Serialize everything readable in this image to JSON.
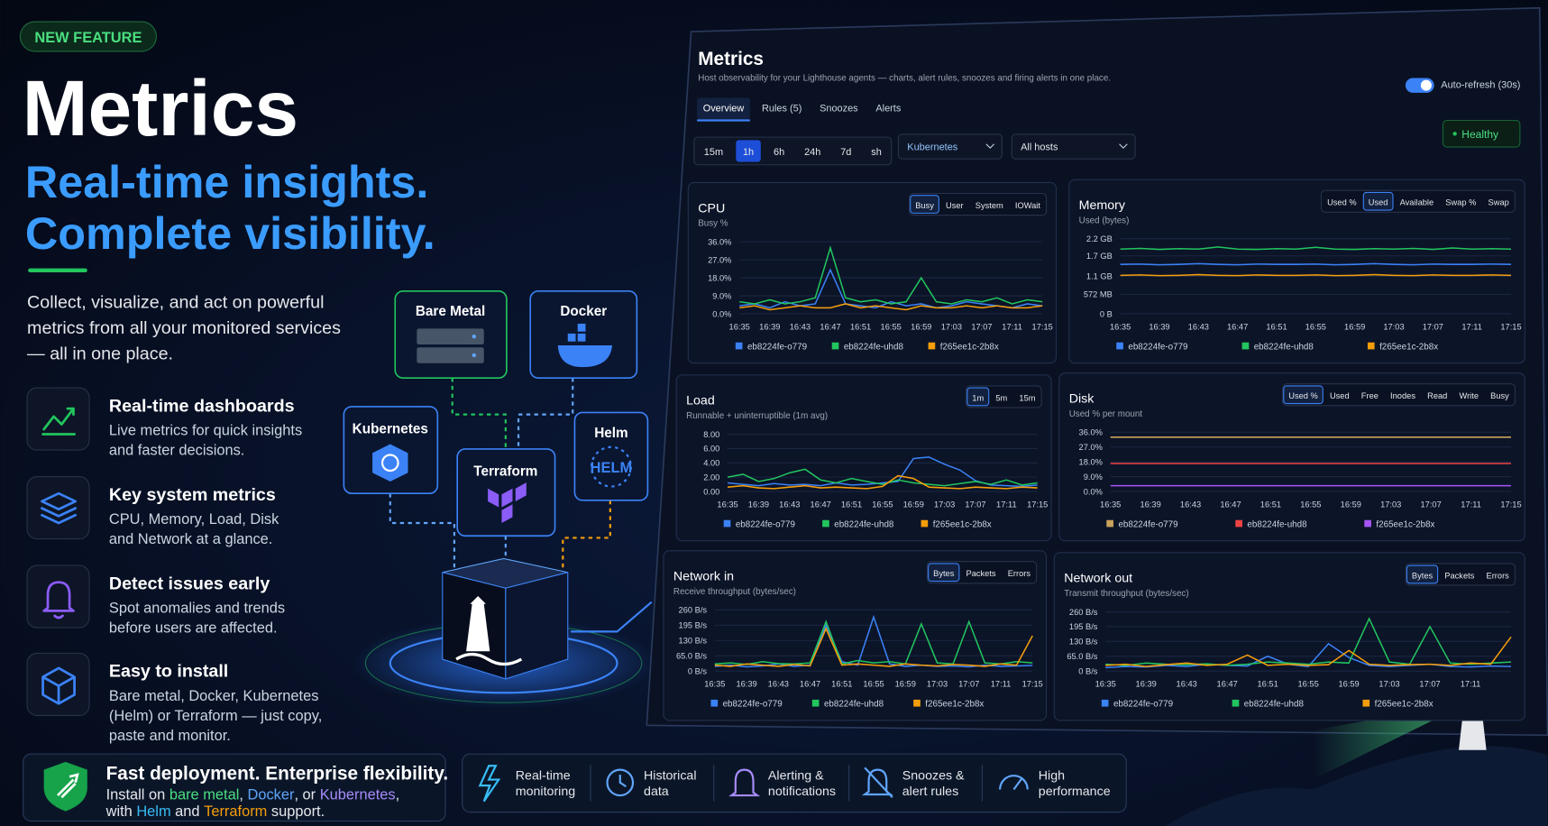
{
  "hero": {
    "badge": "NEW FEATURE",
    "title": "Metrics",
    "tagline": [
      "Real-time insights.",
      "Complete visibility."
    ],
    "description": [
      "Collect, visualize, and act on powerful",
      "metrics from all your monitored services",
      "— all in one place."
    ],
    "features": [
      {
        "title": "Real-time dashboards",
        "text": [
          "Live metrics for quick insights",
          "and faster decisions."
        ]
      },
      {
        "title": "Key system metrics",
        "text": [
          "CPU, Memory, Load, Disk",
          "and Network at a glance."
        ]
      },
      {
        "title": "Detect issues early",
        "text": [
          "Spot anomalies and trends",
          "before users are affected."
        ]
      },
      {
        "title": "Easy to install",
        "text": [
          "Bare metal, Docker, Kubernetes",
          "(Helm) or Terraform — just copy,",
          "paste and monitor."
        ]
      }
    ],
    "deploy": {
      "title": "Fast deployment. Enterprise flexibility.",
      "line1": [
        "Install on ",
        "bare metal",
        ", ",
        "Docker",
        ", or ",
        "Kubernetes",
        ","
      ],
      "line2": [
        "with ",
        "Helm",
        " and ",
        "Terraform",
        " support."
      ]
    }
  },
  "nodes": [
    {
      "label": "Bare Metal"
    },
    {
      "label": "Docker"
    },
    {
      "label": "Kubernetes"
    },
    {
      "label": "Terraform"
    },
    {
      "label": "Helm",
      "icon_text": "HELM"
    }
  ],
  "bottom_bar": [
    [
      "Real-time",
      "monitoring"
    ],
    [
      "Historical",
      "data"
    ],
    [
      "Alerting &",
      "notifications"
    ],
    [
      "Snoozes &",
      "alert rules"
    ],
    [
      "High",
      "performance"
    ]
  ],
  "dashboard": {
    "title": "Metrics",
    "subtitle": "Host observability for your Lighthouse agents — charts, alert rules, snoozes and firing alerts in one place.",
    "auto_refresh": {
      "label": "Auto-refresh (30s)",
      "on": true
    },
    "tabs": [
      "Overview",
      "Rules (5)",
      "Snoozes",
      "Alerts"
    ],
    "selected_tab": 0,
    "ranges": [
      "15m",
      "1h",
      "6h",
      "24h",
      "7d",
      "sh"
    ],
    "selected_range": 1,
    "filters": [
      "Kubernetes",
      "All hosts"
    ],
    "status": "Healthy",
    "panels": [
      {
        "type": "line",
        "title": "CPU",
        "subtitle": "Busy %",
        "buttons": [
          "Busy",
          "User",
          "System",
          "IOWait"
        ],
        "selected_button": 0,
        "categories": [
          "16:35",
          null,
          "16:39",
          null,
          "16:43",
          null,
          "16:47",
          null,
          "16:51",
          null,
          "16:55",
          null,
          "16:59",
          null,
          "17:03",
          null,
          "17:07",
          null,
          "17:11",
          null,
          "17:15"
        ],
        "ylim": [
          0,
          36
        ],
        "yticks": [
          {
            "value": 0,
            "label": "0.0%"
          },
          {
            "value": 9,
            "label": "9.0%"
          },
          {
            "value": 18,
            "label": "18.0%"
          },
          {
            "value": 27,
            "label": "27.0%"
          },
          {
            "value": 36,
            "label": "36.0%"
          }
        ],
        "series": [
          {
            "name": "eb8224fe-o779",
            "color": "#3b82f6",
            "values": [
              4,
              5,
              3,
              6,
              4,
              5,
              22,
              5,
              4,
              3,
              6,
              4,
              5,
              3,
              4,
              6,
              5,
              4,
              3,
              5,
              4
            ]
          },
          {
            "name": "eb8224fe-uhd8",
            "color": "#22c55e",
            "values": [
              6,
              5,
              7,
              5,
              6,
              8,
              33,
              8,
              6,
              7,
              5,
              6,
              18,
              6,
              5,
              7,
              6,
              8,
              5,
              7,
              6
            ]
          },
          {
            "name": "f265ee1c-2b8x",
            "color": "#f59e0b",
            "values": [
              3,
              4,
              2,
              3,
              4,
              3,
              3,
              5,
              3,
              4,
              3,
              2,
              4,
              3,
              3,
              4,
              3,
              4,
              3,
              3,
              4
            ]
          }
        ]
      },
      {
        "type": "line",
        "title": "Memory",
        "subtitle": "Used (bytes)",
        "buttons": [
          "Used %",
          "Used",
          "Available",
          "Swap %",
          "Swap"
        ],
        "selected_button": 1,
        "categories": [
          "16:35",
          null,
          "16:39",
          null,
          "16:43",
          null,
          "16:47",
          null,
          "16:51",
          null,
          "16:55",
          null,
          "16:59",
          null,
          "17:03",
          null,
          "17:07",
          null,
          "17:11",
          null,
          "17:15"
        ],
        "ylim": [
          0,
          2200000000
        ],
        "yticks": [
          {
            "value": 0,
            "label": "0 B"
          },
          {
            "value": 572000000,
            "label": "572 MB"
          },
          {
            "value": 1100000000,
            "label": "1.1 GB"
          },
          {
            "value": 1700000000,
            "label": "1.7 GB"
          },
          {
            "value": 2200000000,
            "label": "2.2 GB"
          }
        ],
        "series": [
          {
            "name": "eb8224fe-o779",
            "color": "#3b82f6",
            "values": [
              1450000000,
              1460000000,
              1440000000,
              1450000000,
              1470000000,
              1450000000,
              1440000000,
              1460000000,
              1450000000,
              1450000000,
              1460000000,
              1440000000,
              1450000000,
              1470000000,
              1450000000,
              1440000000,
              1460000000,
              1450000000,
              1450000000,
              1460000000,
              1450000000
            ]
          },
          {
            "name": "eb8224fe-uhd8",
            "color": "#22c55e",
            "values": [
              1900000000,
              1920000000,
              1890000000,
              1910000000,
              1900000000,
              1960000000,
              1900000000,
              1890000000,
              1910000000,
              1900000000,
              1950000000,
              1900000000,
              1890000000,
              1910000000,
              1900000000,
              1920000000,
              1890000000,
              1930000000,
              1900000000,
              1910000000,
              1900000000
            ]
          },
          {
            "name": "f265ee1c-2b8x",
            "color": "#f59e0b",
            "values": [
              1130000000,
              1140000000,
              1120000000,
              1130000000,
              1150000000,
              1130000000,
              1120000000,
              1140000000,
              1130000000,
              1130000000,
              1140000000,
              1120000000,
              1130000000,
              1150000000,
              1130000000,
              1120000000,
              1140000000,
              1130000000,
              1130000000,
              1140000000,
              1130000000
            ]
          }
        ]
      },
      {
        "type": "line",
        "title": "Load",
        "subtitle": "Runnable + uninterruptible (1m avg)",
        "buttons": [
          "1m",
          "5m",
          "15m"
        ],
        "selected_button": 0,
        "categories": [
          "16:35",
          null,
          "16:39",
          null,
          "16:43",
          null,
          "16:47",
          null,
          "16:51",
          null,
          "16:55",
          null,
          "16:59",
          null,
          "17:03",
          null,
          "17:07",
          null,
          "17:11",
          null,
          "17:15"
        ],
        "ylim": [
          0,
          8
        ],
        "yticks": [
          {
            "value": 0,
            "label": "0.00"
          },
          {
            "value": 2,
            "label": "2.00"
          },
          {
            "value": 4,
            "label": "4.00"
          },
          {
            "value": 6,
            "label": "6.00"
          },
          {
            "value": 8,
            "label": "8.00"
          }
        ],
        "series": [
          {
            "name": "eb8224fe-o779",
            "color": "#3b82f6",
            "values": [
              1.2,
              1,
              0.8,
              1.1,
              0.9,
              1,
              0.8,
              1.2,
              0.9,
              1,
              1.2,
              1.4,
              4.6,
              4.8,
              3.8,
              3,
              1.5,
              0.9,
              0.8,
              0.7,
              0.9
            ]
          },
          {
            "name": "eb8224fe-uhd8",
            "color": "#22c55e",
            "values": [
              2,
              2.4,
              1.4,
              1.8,
              2.6,
              3.1,
              1.6,
              1.2,
              1.8,
              1.4,
              1,
              1.6,
              1.2,
              1,
              0.8,
              1.1,
              1.4,
              1,
              1.6,
              0.9,
              1.2
            ]
          },
          {
            "name": "f265ee1c-2b8x",
            "color": "#f59e0b",
            "values": [
              0.6,
              0.8,
              0.5,
              0.4,
              0.6,
              0.8,
              0.5,
              0.6,
              0.5,
              0.4,
              0.7,
              2.2,
              1.8,
              0.6,
              0.5,
              0.4,
              0.6,
              0.5,
              0.4,
              0.6,
              0.5
            ]
          }
        ]
      },
      {
        "type": "line",
        "title": "Disk",
        "subtitle": "Used % per mount",
        "buttons": [
          "Used %",
          "Used",
          "Free",
          "Inodes",
          "Read",
          "Write",
          "Busy"
        ],
        "selected_button": 0,
        "categories": [
          "16:35",
          null,
          "16:39",
          null,
          "16:43",
          null,
          "16:47",
          null,
          "16:51",
          null,
          "16:55",
          null,
          "16:59",
          null,
          "17:03",
          null,
          "17:07",
          null,
          "17:11",
          null,
          "17:15"
        ],
        "ylim": [
          0,
          36
        ],
        "yticks": [
          {
            "value": 0,
            "label": "0.0%"
          },
          {
            "value": 9,
            "label": "9.0%"
          },
          {
            "value": 18,
            "label": "18.0%"
          },
          {
            "value": 27,
            "label": "27.0%"
          },
          {
            "value": 36,
            "label": "36.0%"
          }
        ],
        "series": [
          {
            "name": "eb8224fe-o779",
            "color": "#c9a35a",
            "values": [
              33,
              33,
              33,
              33,
              33,
              33,
              33,
              33,
              33,
              33,
              33,
              33,
              33,
              33,
              33,
              33,
              33,
              33,
              33,
              33,
              33
            ]
          },
          {
            "name": "eb8224fe-uhd8",
            "color": "#ef4444",
            "values": [
              17,
              17,
              17,
              17,
              17,
              17,
              17,
              17,
              17,
              17,
              17,
              17,
              17,
              17,
              17,
              17,
              17,
              17,
              17,
              17,
              17
            ]
          },
          {
            "name": "f265ee1c-2b8x",
            "color": "#a855f7",
            "values": [
              3.5,
              3.5,
              3.5,
              3.5,
              3.5,
              3.5,
              3.5,
              3.5,
              3.5,
              3.5,
              3.5,
              3.5,
              3.5,
              3.5,
              3.5,
              3.5,
              3.5,
              3.5,
              3.5,
              3.5,
              3.5
            ]
          }
        ]
      },
      {
        "type": "line",
        "title": "Network in",
        "subtitle": "Receive throughput (bytes/sec)",
        "buttons": [
          "Bytes",
          "Packets",
          "Errors"
        ],
        "selected_button": 0,
        "categories": [
          "16:35",
          null,
          "16:39",
          null,
          "16:43",
          null,
          "16:47",
          null,
          "16:51",
          null,
          "16:55",
          null,
          "16:59",
          null,
          "17:03",
          null,
          "17:07",
          null,
          "17:11",
          null,
          "17:15"
        ],
        "ylim": [
          0,
          260
        ],
        "yticks": [
          {
            "value": 0,
            "label": "0 B/s"
          },
          {
            "value": 65,
            "label": "65.0 B/s"
          },
          {
            "value": 130,
            "label": "130 B/s"
          },
          {
            "value": 195,
            "label": "195 B/s"
          },
          {
            "value": 260,
            "label": "260 B/s"
          }
        ],
        "series": [
          {
            "name": "eb8224fe-o779",
            "color": "#3b82f6",
            "values": [
              20,
              25,
              18,
              22,
              30,
              20,
              25,
              195,
              40,
              25,
              230,
              30,
              20,
              25,
              20,
              22,
              18,
              25,
              20,
              22,
              24
            ]
          },
          {
            "name": "eb8224fe-uhd8",
            "color": "#22c55e",
            "values": [
              30,
              35,
              28,
              40,
              32,
              30,
              35,
              210,
              30,
              45,
              35,
              40,
              30,
              200,
              35,
              30,
              210,
              35,
              30,
              40,
              35
            ]
          },
          {
            "name": "f265ee1c-2b8x",
            "color": "#f59e0b",
            "values": [
              25,
              20,
              30,
              25,
              20,
              28,
              22,
              180,
              25,
              30,
              25,
              20,
              30,
              25,
              22,
              28,
              25,
              20,
              30,
              25,
              150
            ]
          }
        ]
      },
      {
        "type": "line",
        "title": "Network out",
        "subtitle": "Transmit throughput (bytes/sec)",
        "buttons": [
          "Bytes",
          "Packets",
          "Errors"
        ],
        "selected_button": 0,
        "categories": [
          "16:35",
          null,
          "16:39",
          null,
          "16:43",
          null,
          "16:47",
          null,
          "16:51",
          null,
          "16:55",
          null,
          "16:59",
          null,
          "17:03",
          null,
          "17:07",
          null,
          "17:11",
          null,
          null
        ],
        "ylim": [
          0,
          260
        ],
        "yticks": [
          {
            "value": 0,
            "label": "0 B/s"
          },
          {
            "value": 65,
            "label": "65.0 B/s"
          },
          {
            "value": 130,
            "label": "130 B/s"
          },
          {
            "value": 195,
            "label": "195 B/s"
          },
          {
            "value": 260,
            "label": "260 B/s"
          }
        ],
        "series": [
          {
            "name": "eb8224fe-o779",
            "color": "#3b82f6",
            "values": [
              15,
              20,
              18,
              25,
              20,
              30,
              25,
              22,
              65,
              30,
              20,
              120,
              60,
              25,
              20,
              25,
              30,
              20,
              18,
              22,
              20
            ]
          },
          {
            "name": "eb8224fe-uhd8",
            "color": "#22c55e",
            "values": [
              30,
              25,
              35,
              30,
              28,
              32,
              25,
              30,
              40,
              35,
              30,
              40,
              35,
              230,
              40,
              30,
              195,
              35,
              30,
              35,
              40
            ]
          },
          {
            "name": "f265ee1c-2b8x",
            "color": "#f59e0b",
            "values": [
              25,
              30,
              20,
              28,
              35,
              25,
              30,
              70,
              25,
              30,
              25,
              28,
              90,
              30,
              25,
              28,
              30,
              25,
              35,
              30,
              150
            ]
          }
        ]
      }
    ]
  }
}
